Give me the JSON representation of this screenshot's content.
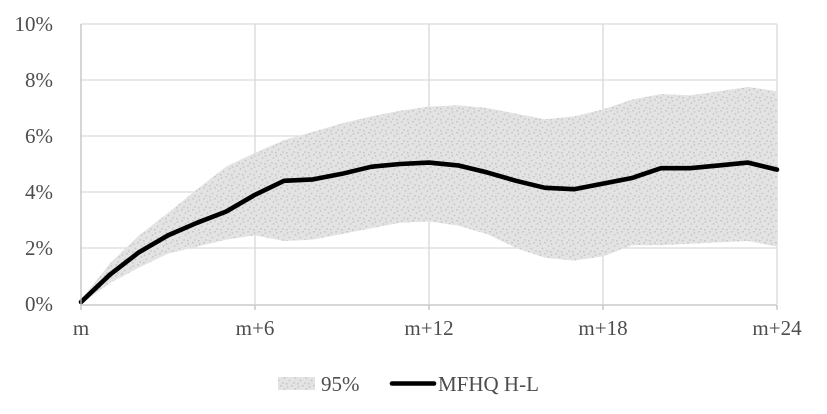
{
  "colors": {
    "background": "#FFFFFF",
    "band_fill": "#E3E3E3",
    "band_dot": "#C5C5C5",
    "gridline": "#D9D9D9",
    "axis": "#BFBFBF",
    "line": "#000000",
    "text": "#4D4D4D"
  },
  "chart_data": {
    "type": "line",
    "title": "",
    "xlabel": "",
    "ylabel": "",
    "ylim": [
      0,
      10
    ],
    "y_unit": "%",
    "grid": true,
    "legend_position": "bottom",
    "x": [
      "m",
      "m+1",
      "m+2",
      "m+3",
      "m+4",
      "m+5",
      "m+6",
      "m+7",
      "m+8",
      "m+9",
      "m+10",
      "m+11",
      "m+12",
      "m+13",
      "m+14",
      "m+15",
      "m+16",
      "m+17",
      "m+18",
      "m+19",
      "m+20",
      "m+21",
      "m+22",
      "m+23",
      "m+24"
    ],
    "x_ticks": {
      "positions": [
        0,
        6,
        12,
        18,
        24
      ],
      "labels": [
        "m",
        "m+6",
        "m+12",
        "m+18",
        "m+24"
      ]
    },
    "y_ticks": {
      "values": [
        0,
        2,
        4,
        6,
        8,
        10
      ],
      "labels": [
        "0%",
        "2%",
        "4%",
        "6%",
        "8%",
        "10%"
      ]
    },
    "series": [
      {
        "name": "MFHQ H-L",
        "type": "line",
        "color": "#000000",
        "values": [
          0.07,
          1.05,
          1.85,
          2.45,
          2.9,
          3.3,
          3.9,
          4.4,
          4.45,
          4.65,
          4.9,
          5.0,
          5.05,
          4.95,
          4.7,
          4.4,
          4.15,
          4.1,
          4.3,
          4.5,
          4.85,
          4.85,
          4.95,
          5.05,
          4.8
        ]
      },
      {
        "name": "95%",
        "type": "band",
        "color": "#E3E3E3",
        "upper": [
          0.15,
          1.45,
          2.45,
          3.25,
          4.1,
          4.9,
          5.4,
          5.85,
          6.15,
          6.45,
          6.7,
          6.9,
          7.05,
          7.1,
          7.0,
          6.8,
          6.6,
          6.7,
          6.95,
          7.3,
          7.5,
          7.45,
          7.6,
          7.75,
          7.6
        ],
        "lower": [
          0.0,
          0.75,
          1.3,
          1.8,
          2.05,
          2.3,
          2.45,
          2.25,
          2.3,
          2.5,
          2.7,
          2.9,
          2.95,
          2.8,
          2.5,
          2.0,
          1.65,
          1.55,
          1.7,
          2.1,
          2.1,
          2.15,
          2.2,
          2.25,
          2.05
        ]
      }
    ],
    "legend": [
      {
        "label": "95%",
        "swatch": "band"
      },
      {
        "label": "MFHQ H-L",
        "swatch": "line"
      }
    ]
  }
}
